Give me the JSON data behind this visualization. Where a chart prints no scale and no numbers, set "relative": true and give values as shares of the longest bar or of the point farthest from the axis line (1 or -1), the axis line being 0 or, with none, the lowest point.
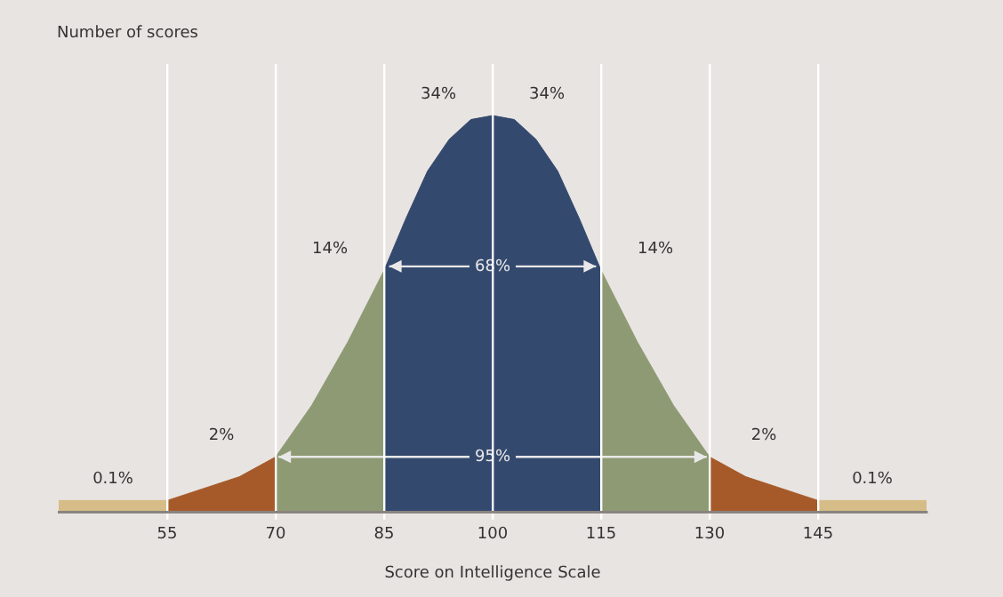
{
  "chart_data": {
    "type": "area",
    "relative": true,
    "ylabel": "Number of scores",
    "xlabel": "Score on Intelligence Scale",
    "xlim": [
      40,
      160
    ],
    "xticks": [
      55,
      70,
      85,
      100,
      115,
      130,
      145
    ],
    "grid": "x",
    "series": [
      {
        "name": "0.1%",
        "color": "#d6bc86",
        "x": [
          40,
          55
        ],
        "values": [
          0.03,
          0.03
        ]
      },
      {
        "name": "2%",
        "color": "#a65a2a",
        "x": [
          55,
          60,
          65,
          70
        ],
        "values": [
          0.03,
          0.06,
          0.09,
          0.14
        ]
      },
      {
        "name": "14%",
        "color": "#8e9a74",
        "x": [
          70,
          75,
          80,
          85
        ],
        "values": [
          0.14,
          0.27,
          0.43,
          0.61
        ]
      },
      {
        "name": "34%",
        "color": "#34496e",
        "x": [
          85,
          88,
          91,
          94,
          97,
          100
        ],
        "values": [
          0.61,
          0.74,
          0.86,
          0.94,
          0.99,
          1
        ]
      },
      {
        "name": "34%",
        "color": "#34496e",
        "x": [
          100,
          103,
          106,
          109,
          112,
          115
        ],
        "values": [
          1,
          0.99,
          0.94,
          0.86,
          0.74,
          0.61
        ]
      },
      {
        "name": "14%",
        "color": "#8e9a74",
        "x": [
          115,
          120,
          125,
          130
        ],
        "values": [
          0.61,
          0.43,
          0.27,
          0.14
        ]
      },
      {
        "name": "2%",
        "color": "#a65a2a",
        "x": [
          130,
          135,
          140,
          145
        ],
        "values": [
          0.14,
          0.09,
          0.06,
          0.03
        ]
      },
      {
        "name": "0.1%",
        "color": "#d6bc86",
        "x": [
          145,
          160
        ],
        "values": [
          0.03,
          0.03
        ]
      }
    ],
    "annotations": [
      "68%",
      "95%"
    ]
  }
}
